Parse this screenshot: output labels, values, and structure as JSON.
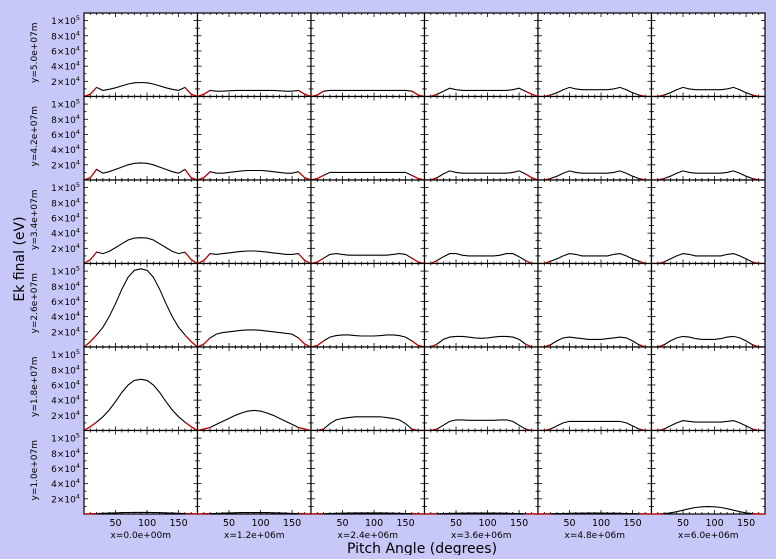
{
  "figure": {
    "ylabel": "Ek final (eV)",
    "xlabel": "Pitch Angle (degrees)",
    "colors": {
      "background": "#c8c8f8",
      "panel": "#ffffff",
      "axis": "#000000",
      "curve": "#000000",
      "edge_curve": "#cc0000"
    }
  },
  "chart_data": {
    "type": "line",
    "grid": false,
    "layout": "6 rows x 6 columns of small-multiple panels",
    "x_axis": {
      "label": "Pitch Angle (degrees)",
      "range": [
        0,
        180
      ],
      "ticks": [
        50,
        100,
        150
      ]
    },
    "y_axis": {
      "label": "Ek final (eV)",
      "range": [
        0,
        110000
      ],
      "ticks": [
        {
          "value": 20000,
          "mantissa": "2",
          "exp": "4"
        },
        {
          "value": 40000,
          "mantissa": "4",
          "exp": "4"
        },
        {
          "value": 60000,
          "mantissa": "6",
          "exp": "4"
        },
        {
          "value": 80000,
          "mantissa": "8",
          "exp": "4"
        },
        {
          "value": 100000,
          "mantissa": "1",
          "exp": "5"
        }
      ]
    },
    "columns": [
      "x=0.0e+00m",
      "x=1.2e+06m",
      "x=2.4e+06m",
      "x=3.6e+06m",
      "x=4.8e+06m",
      "x=6.0e+06m"
    ],
    "rows": [
      "y=5.0e+07m",
      "y=4.2e+07m",
      "y=3.4e+07m",
      "y=2.6e+07m",
      "y=1.8e+07m",
      "y=1.0e+07m"
    ],
    "x": [
      0,
      10,
      20,
      30,
      40,
      50,
      60,
      70,
      80,
      90,
      100,
      110,
      120,
      130,
      140,
      150,
      160,
      170,
      180
    ],
    "panels": [
      [
        [
          0,
          3000,
          12000,
          8000,
          9500,
          11500,
          14000,
          16500,
          18000,
          18500,
          18000,
          16500,
          14000,
          11500,
          9500,
          8000,
          12000,
          3000,
          0
        ],
        [
          0,
          3000,
          8000,
          7000,
          7000,
          7500,
          8000,
          8000,
          8000,
          8000,
          8000,
          8000,
          8000,
          7500,
          7000,
          7000,
          8000,
          3000,
          0
        ],
        [
          0,
          2000,
          7000,
          8000,
          8000,
          8000,
          8000,
          8000,
          8000,
          8000,
          8000,
          8000,
          8000,
          8000,
          8000,
          8000,
          7000,
          2000,
          0
        ],
        [
          0,
          0,
          3000,
          7000,
          11000,
          9000,
          8000,
          8000,
          8000,
          8000,
          8000,
          8000,
          8000,
          8000,
          9000,
          11000,
          7000,
          3000,
          0
        ],
        [
          0,
          0,
          2000,
          5000,
          9000,
          12000,
          10000,
          9000,
          9000,
          9000,
          9000,
          9000,
          10000,
          12000,
          9000,
          5000,
          2000,
          0,
          0
        ],
        [
          0,
          0,
          2000,
          5000,
          9000,
          12000,
          10000,
          9000,
          9000,
          9000,
          9000,
          9000,
          10000,
          12000,
          9000,
          5000,
          2000,
          0,
          0
        ]
      ],
      [
        [
          0,
          3000,
          14000,
          9000,
          11000,
          14000,
          17000,
          20000,
          22000,
          22500,
          22000,
          20000,
          17000,
          14000,
          11000,
          9000,
          14000,
          3000,
          0
        ],
        [
          0,
          3000,
          11000,
          9000,
          9000,
          10000,
          11000,
          12000,
          12500,
          12500,
          12500,
          12000,
          11000,
          10000,
          9000,
          9000,
          11000,
          3000,
          0
        ],
        [
          0,
          2000,
          6000,
          10000,
          10000,
          10000,
          10000,
          10000,
          10000,
          10000,
          10000,
          10000,
          10000,
          10000,
          10000,
          10000,
          6000,
          2000,
          0
        ],
        [
          0,
          0,
          3000,
          8000,
          12000,
          10000,
          9000,
          9000,
          9000,
          9000,
          9000,
          9000,
          9000,
          9000,
          10000,
          12000,
          8000,
          3000,
          0
        ],
        [
          0,
          0,
          2000,
          5000,
          9000,
          12000,
          10000,
          9000,
          9000,
          9000,
          9000,
          9000,
          10000,
          12000,
          9000,
          5000,
          2000,
          0,
          0
        ],
        [
          0,
          0,
          2000,
          5000,
          9000,
          12000,
          10000,
          9000,
          9000,
          9000,
          9000,
          9000,
          10000,
          12000,
          9000,
          5000,
          2000,
          0,
          0
        ]
      ],
      [
        [
          0,
          5000,
          15000,
          13000,
          16000,
          21000,
          26000,
          31000,
          33500,
          34000,
          33500,
          31000,
          26000,
          21000,
          16000,
          13000,
          15000,
          5000,
          0
        ],
        [
          0,
          4000,
          13000,
          12000,
          13000,
          14000,
          15000,
          16000,
          16500,
          16500,
          16000,
          15000,
          14000,
          13000,
          12000,
          12000,
          13000,
          4000,
          0
        ],
        [
          0,
          2000,
          7000,
          12000,
          13000,
          12000,
          11000,
          11000,
          11000,
          11000,
          11000,
          11000,
          11000,
          12000,
          13000,
          12000,
          7000,
          2000,
          0
        ],
        [
          0,
          0,
          4000,
          9000,
          13000,
          13000,
          11000,
          10000,
          10000,
          10000,
          10000,
          10000,
          11000,
          13000,
          13000,
          9000,
          4000,
          0,
          0
        ],
        [
          0,
          0,
          3000,
          6000,
          10000,
          13000,
          12000,
          10000,
          10000,
          10000,
          10000,
          10000,
          12000,
          13000,
          10000,
          6000,
          3000,
          0,
          0
        ],
        [
          0,
          0,
          2000,
          6000,
          10000,
          13000,
          12000,
          10000,
          10000,
          10000,
          10000,
          10000,
          12000,
          13000,
          10000,
          6000,
          2000,
          0,
          0
        ]
      ],
      [
        [
          0,
          7000,
          16000,
          26000,
          40000,
          57000,
          76000,
          92000,
          101000,
          103000,
          101000,
          92000,
          76000,
          57000,
          40000,
          26000,
          16000,
          7000,
          0
        ],
        [
          0,
          4000,
          12000,
          17000,
          19000,
          20000,
          21000,
          22000,
          22500,
          22500,
          22000,
          21000,
          20000,
          19000,
          18000,
          17000,
          12000,
          4000,
          0
        ],
        [
          0,
          2000,
          8000,
          13000,
          15000,
          16000,
          16000,
          15000,
          14500,
          14500,
          14500,
          15000,
          16000,
          16000,
          15000,
          13000,
          8000,
          2000,
          0
        ],
        [
          0,
          0,
          4000,
          10000,
          13000,
          14000,
          14000,
          13000,
          12000,
          11500,
          12000,
          13000,
          14000,
          14000,
          13000,
          10000,
          4000,
          0,
          0
        ],
        [
          0,
          0,
          3000,
          8000,
          12000,
          13000,
          12000,
          11000,
          10000,
          10000,
          10000,
          11000,
          12000,
          13000,
          12000,
          8000,
          3000,
          0,
          0
        ],
        [
          0,
          0,
          3000,
          8000,
          12000,
          14000,
          13000,
          11000,
          10000,
          10000,
          10000,
          11000,
          13000,
          14000,
          12000,
          8000,
          3000,
          0,
          0
        ]
      ],
      [
        [
          0,
          5000,
          11000,
          18000,
          27000,
          38000,
          50000,
          60000,
          66000,
          67500,
          66000,
          60000,
          50000,
          38000,
          27000,
          18000,
          11000,
          5000,
          0
        ],
        [
          0,
          2000,
          4000,
          8000,
          12000,
          16000,
          20000,
          23000,
          25500,
          26500,
          25500,
          23000,
          20000,
          16000,
          12000,
          8000,
          4000,
          2000,
          0
        ],
        [
          0,
          0,
          2000,
          9000,
          14000,
          16000,
          17000,
          18000,
          18000,
          18000,
          18000,
          18000,
          17000,
          16000,
          14000,
          9000,
          2000,
          0,
          0
        ],
        [
          0,
          0,
          2000,
          7000,
          12000,
          14000,
          14000,
          13500,
          13500,
          13500,
          13500,
          13500,
          14000,
          14000,
          12000,
          7000,
          2000,
          0,
          0
        ],
        [
          0,
          0,
          2000,
          6000,
          10000,
          12000,
          12000,
          12000,
          12000,
          12000,
          12000,
          12000,
          12000,
          12000,
          10000,
          6000,
          2000,
          0,
          0
        ],
        [
          0,
          0,
          2000,
          6000,
          10000,
          13000,
          12000,
          11000,
          11000,
          11000,
          11000,
          11000,
          12000,
          13000,
          10000,
          6000,
          2000,
          0,
          0
        ]
      ],
      [
        [
          0,
          200,
          500,
          900,
          1200,
          1500,
          1800,
          2000,
          2100,
          2100,
          2100,
          2000,
          1800,
          1500,
          1200,
          900,
          500,
          200,
          0
        ],
        [
          0,
          200,
          500,
          800,
          1100,
          1400,
          1600,
          1800,
          1900,
          1900,
          1900,
          1800,
          1600,
          1400,
          1100,
          800,
          500,
          200,
          0
        ],
        [
          0,
          200,
          400,
          700,
          900,
          1100,
          1300,
          1400,
          1500,
          1500,
          1500,
          1400,
          1300,
          1100,
          900,
          700,
          400,
          200,
          0
        ],
        [
          0,
          100,
          300,
          600,
          800,
          1000,
          1100,
          1200,
          1300,
          1300,
          1300,
          1200,
          1100,
          1000,
          800,
          600,
          300,
          100,
          0
        ],
        [
          0,
          100,
          300,
          500,
          700,
          900,
          1000,
          1100,
          1200,
          1200,
          1200,
          1100,
          1000,
          900,
          700,
          500,
          300,
          100,
          0
        ],
        [
          0,
          0,
          500,
          1500,
          3000,
          5000,
          7000,
          8500,
          9500,
          9800,
          9500,
          8500,
          7000,
          5000,
          3000,
          1500,
          500,
          0,
          0
        ]
      ]
    ]
  }
}
